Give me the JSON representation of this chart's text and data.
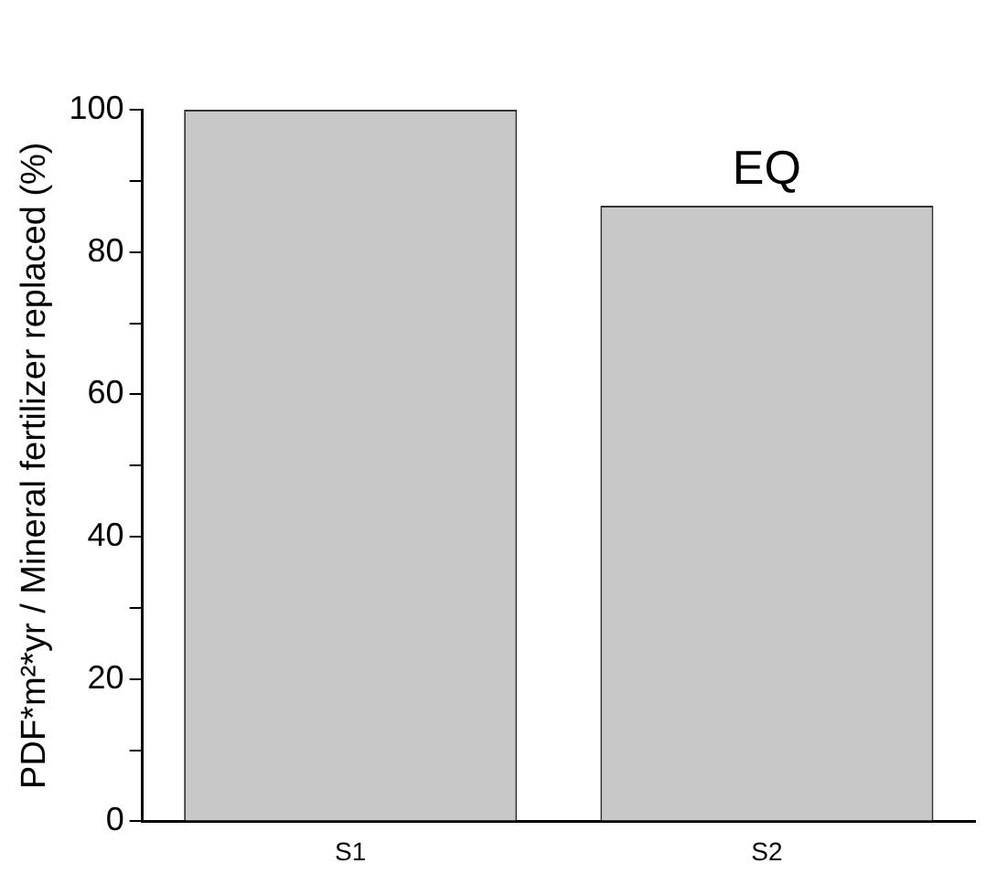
{
  "chart_data": {
    "type": "bar",
    "ylabel": "PDF*m²*yr / Mineral fertilizer replaced (%)",
    "categories": [
      "S1",
      "S2"
    ],
    "values": [
      100,
      86.5
    ],
    "color": "#c8c8c8",
    "ylim": [
      0,
      100
    ],
    "yticks": [
      0,
      {
        "value": 10,
        "label": null
      },
      20,
      {
        "value": 30,
        "label": null
      },
      40,
      {
        "value": 50,
        "label": null
      },
      60,
      {
        "value": 70,
        "label": null
      },
      80,
      {
        "value": 90,
        "label": null
      },
      100
    ],
    "annotations": [
      {
        "text": "EQ",
        "x": "S2",
        "y": 86.5
      }
    ],
    "grid": false,
    "legend": false
  }
}
